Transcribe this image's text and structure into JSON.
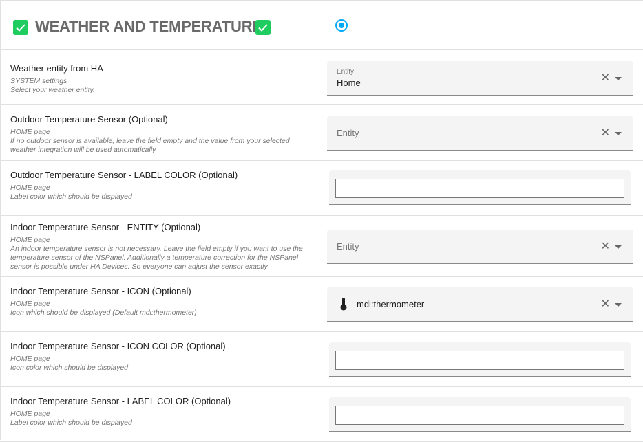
{
  "header": {
    "title": "WEATHER AND TEMPERATURE",
    "checkbox_color": "#1fcc5f",
    "radio_color": "#03a9f4",
    "radio_selected": true
  },
  "rows": [
    {
      "label": "Weather entity from HA",
      "page": "SYSTEM settings",
      "desc": [
        "Select your weather entity."
      ],
      "field": {
        "type": "entity",
        "label": "Entity",
        "value": "Home"
      }
    },
    {
      "label": "Outdoor Temperature Sensor (Optional)",
      "page": "HOME page",
      "desc": [
        "If no outdoor sensor is available, leave the field empty and the value from your selected",
        "weather integration will be used automatically"
      ],
      "field": {
        "type": "entity",
        "placeholder": "Entity"
      }
    },
    {
      "label": "Outdoor Temperature Sensor - LABEL COLOR (Optional)",
      "page": "HOME page",
      "desc": [
        "Label color which should be displayed"
      ],
      "field": {
        "type": "color",
        "value": ""
      }
    },
    {
      "label": "Indoor Temperature Sensor - ENTITY (Optional)",
      "page": "HOME page",
      "desc": [
        "An indoor temperature sensor is not necessary. Leave the field empty if you want to use the",
        "temperature sensor of the NSPanel. Additionally a temperature correction for the NSPanel",
        "sensor is possible under HA Devices. So everyone can adjust the sensor exactly"
      ],
      "field": {
        "type": "entity",
        "placeholder": "Entity"
      }
    },
    {
      "label": "Indoor Temperature Sensor - ICON (Optional)",
      "page": "HOME page",
      "desc": [
        "Icon which should be displayed (Default mdi:thermometer)"
      ],
      "field": {
        "type": "icon",
        "value": "mdi:thermometer",
        "icon": "thermometer-icon"
      }
    },
    {
      "label": "Indoor Temperature Sensor - ICON COLOR (Optional)",
      "page": "HOME page",
      "desc": [
        "Icon color which should be displayed"
      ],
      "field": {
        "type": "color",
        "value": ""
      }
    },
    {
      "label": "Indoor Temperature Sensor - LABEL COLOR (Optional)",
      "page": "HOME page",
      "desc": [
        "Label color which should be displayed"
      ],
      "field": {
        "type": "color",
        "value": ""
      }
    }
  ],
  "icons": {
    "clear": "✕"
  }
}
